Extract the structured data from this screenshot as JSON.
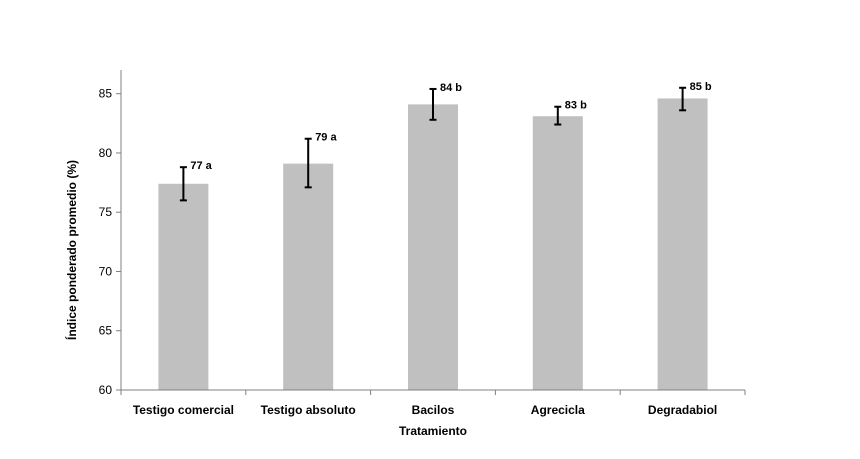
{
  "chart_data": {
    "type": "bar",
    "xlabel": "Tratamiento",
    "ylabel": "Índice ponderado promedio  (%)",
    "ylim": [
      60,
      87
    ],
    "yticks": [
      60,
      65,
      70,
      75,
      80,
      85
    ],
    "categories": [
      "Testigo comercial",
      "Testigo absoluto",
      "Bacilos",
      "Agrecicla",
      "Degradabiol"
    ],
    "values": [
      77.4,
      79.1,
      84.1,
      83.1,
      84.6
    ],
    "error_low": [
      76.0,
      77.1,
      82.8,
      82.4,
      83.6
    ],
    "error_high": [
      78.8,
      81.2,
      85.4,
      83.9,
      85.5
    ],
    "labels": [
      "77 a",
      "79 a",
      "84 b",
      "83 b",
      "85 b"
    ],
    "bar_color": "#c0c0c0",
    "error_color": "#000000",
    "grid": false,
    "legend": false
  }
}
